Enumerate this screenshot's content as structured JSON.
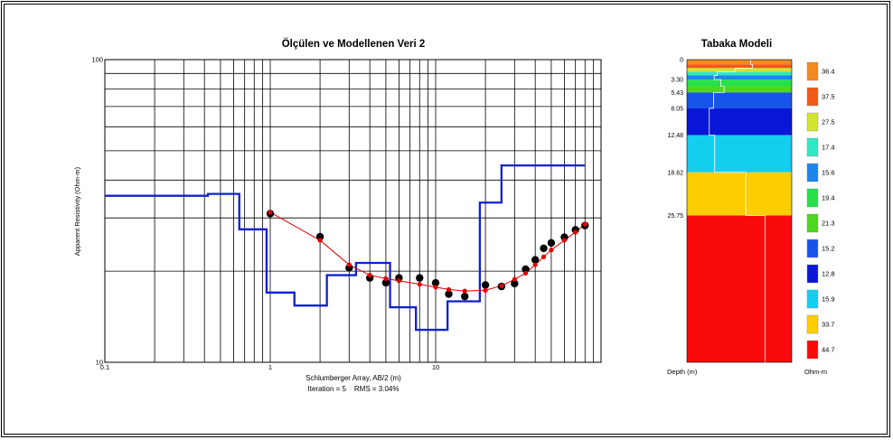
{
  "chart_data": [
    {
      "type": "line",
      "title": "Ölçülen ve Modellenen Veri 2",
      "xlabel": "Schlumberger Array, AB/2 (m)",
      "ylabel": "Apparent Resistivity (Ohm-m)",
      "x_scale": "log",
      "y_scale": "log",
      "xlim": [
        0.1,
        100
      ],
      "ylim": [
        10,
        100
      ],
      "x_tick_labels": [
        {
          "value": 0.1,
          "label": "0.1"
        },
        {
          "value": 1,
          "label": "1"
        },
        {
          "value": 10,
          "label": "10"
        }
      ],
      "y_tick_labels": [
        {
          "value": 10,
          "label": "10"
        },
        {
          "value": 100,
          "label": "100"
        }
      ],
      "grid": true,
      "footnote": "Iteration = 5    RMS = 3.04%",
      "series": [
        {
          "style": "markers",
          "color": "#000000",
          "x": [
            1,
            2,
            3,
            4,
            5,
            6,
            8,
            10,
            12,
            15,
            20,
            25,
            30,
            35,
            40,
            45,
            50,
            60,
            70,
            80
          ],
          "y": [
            31,
            26,
            20.5,
            19,
            18.3,
            19,
            19,
            18.3,
            16.8,
            16.5,
            18,
            17.8,
            18.2,
            20.3,
            21.8,
            23.8,
            24.8,
            25.9,
            27.4,
            28.3
          ]
        },
        {
          "style": "line-markers",
          "color": "#e00000",
          "x": [
            1,
            2,
            3,
            4,
            5,
            6,
            8,
            10,
            12,
            15,
            20,
            25,
            30,
            35,
            40,
            45,
            50,
            60,
            70,
            80
          ],
          "y": [
            31.3,
            25.3,
            21,
            19.4,
            18.9,
            18.6,
            18.1,
            17.7,
            17.4,
            17.2,
            17.3,
            17.9,
            18.8,
            19.7,
            21,
            22.3,
            23.5,
            25.3,
            26.9,
            28.6
          ]
        },
        {
          "style": "step",
          "color": "#1020d0",
          "x": [
            0.1,
            0.42,
            0.42,
            0.65,
            0.65,
            0.95,
            0.95,
            1.4,
            1.4,
            2.2,
            2.2,
            3.3,
            3.3,
            5.3,
            5.3,
            7.6,
            7.6,
            11.8,
            11.8,
            18.5,
            18.5,
            25,
            25,
            80
          ],
          "y": [
            35.5,
            35.5,
            36,
            36,
            27.5,
            27.5,
            17,
            17,
            15.4,
            15.4,
            19.4,
            19.4,
            21.3,
            21.3,
            15.2,
            15.2,
            12.8,
            12.8,
            15.9,
            15.9,
            33.7,
            33.7,
            44.7,
            44.7
          ]
        }
      ]
    },
    {
      "type": "layer-model",
      "title": "Tabaka Modeli",
      "ylabel": "Depth (m)",
      "legend_title": "Ohm-m",
      "depth_max": 50,
      "depth_ticks": [
        "0",
        "3.30",
        "5.43",
        "8.05",
        "12.48",
        "18.62",
        "25.75"
      ],
      "depth_tick_values": [
        0,
        3.3,
        5.43,
        8.05,
        12.48,
        18.62,
        25.75
      ],
      "layers": [
        {
          "top": 0,
          "bottom": 0.8,
          "color": "#f28a1e"
        },
        {
          "top": 0.8,
          "bottom": 1.4,
          "color": "#f05a18"
        },
        {
          "top": 1.4,
          "bottom": 2.0,
          "color": "#d2e62e"
        },
        {
          "top": 2.0,
          "bottom": 2.6,
          "color": "#33e6c6"
        },
        {
          "top": 2.6,
          "bottom": 3.3,
          "color": "#1a86ee"
        },
        {
          "top": 3.3,
          "bottom": 4.4,
          "color": "#27e04b"
        },
        {
          "top": 4.4,
          "bottom": 5.43,
          "color": "#4fd61e"
        },
        {
          "top": 5.43,
          "bottom": 8.05,
          "color": "#1854ea"
        },
        {
          "top": 8.05,
          "bottom": 12.48,
          "color": "#0a16d8"
        },
        {
          "top": 12.48,
          "bottom": 18.62,
          "color": "#14cef0"
        },
        {
          "top": 18.62,
          "bottom": 25.75,
          "color": "#fcce00"
        },
        {
          "top": 25.75,
          "bottom": 50,
          "color": "#fa0a0a"
        }
      ],
      "legend": [
        {
          "value": "36.4",
          "color": "#f28a1e"
        },
        {
          "value": "37.5",
          "color": "#f05a18"
        },
        {
          "value": "27.5",
          "color": "#d2e62e"
        },
        {
          "value": "17.4",
          "color": "#33e6c6"
        },
        {
          "value": "15.6",
          "color": "#1a86ee"
        },
        {
          "value": "19.4",
          "color": "#27e04b"
        },
        {
          "value": "21.3",
          "color": "#4fd61e"
        },
        {
          "value": "15.2",
          "color": "#1854ea"
        },
        {
          "value": "12.8",
          "color": "#0a16d8"
        },
        {
          "value": "15.9",
          "color": "#14cef0"
        },
        {
          "value": "33.7",
          "color": "#fcce00"
        },
        {
          "value": "44.7",
          "color": "#fa0a0a"
        }
      ]
    }
  ]
}
